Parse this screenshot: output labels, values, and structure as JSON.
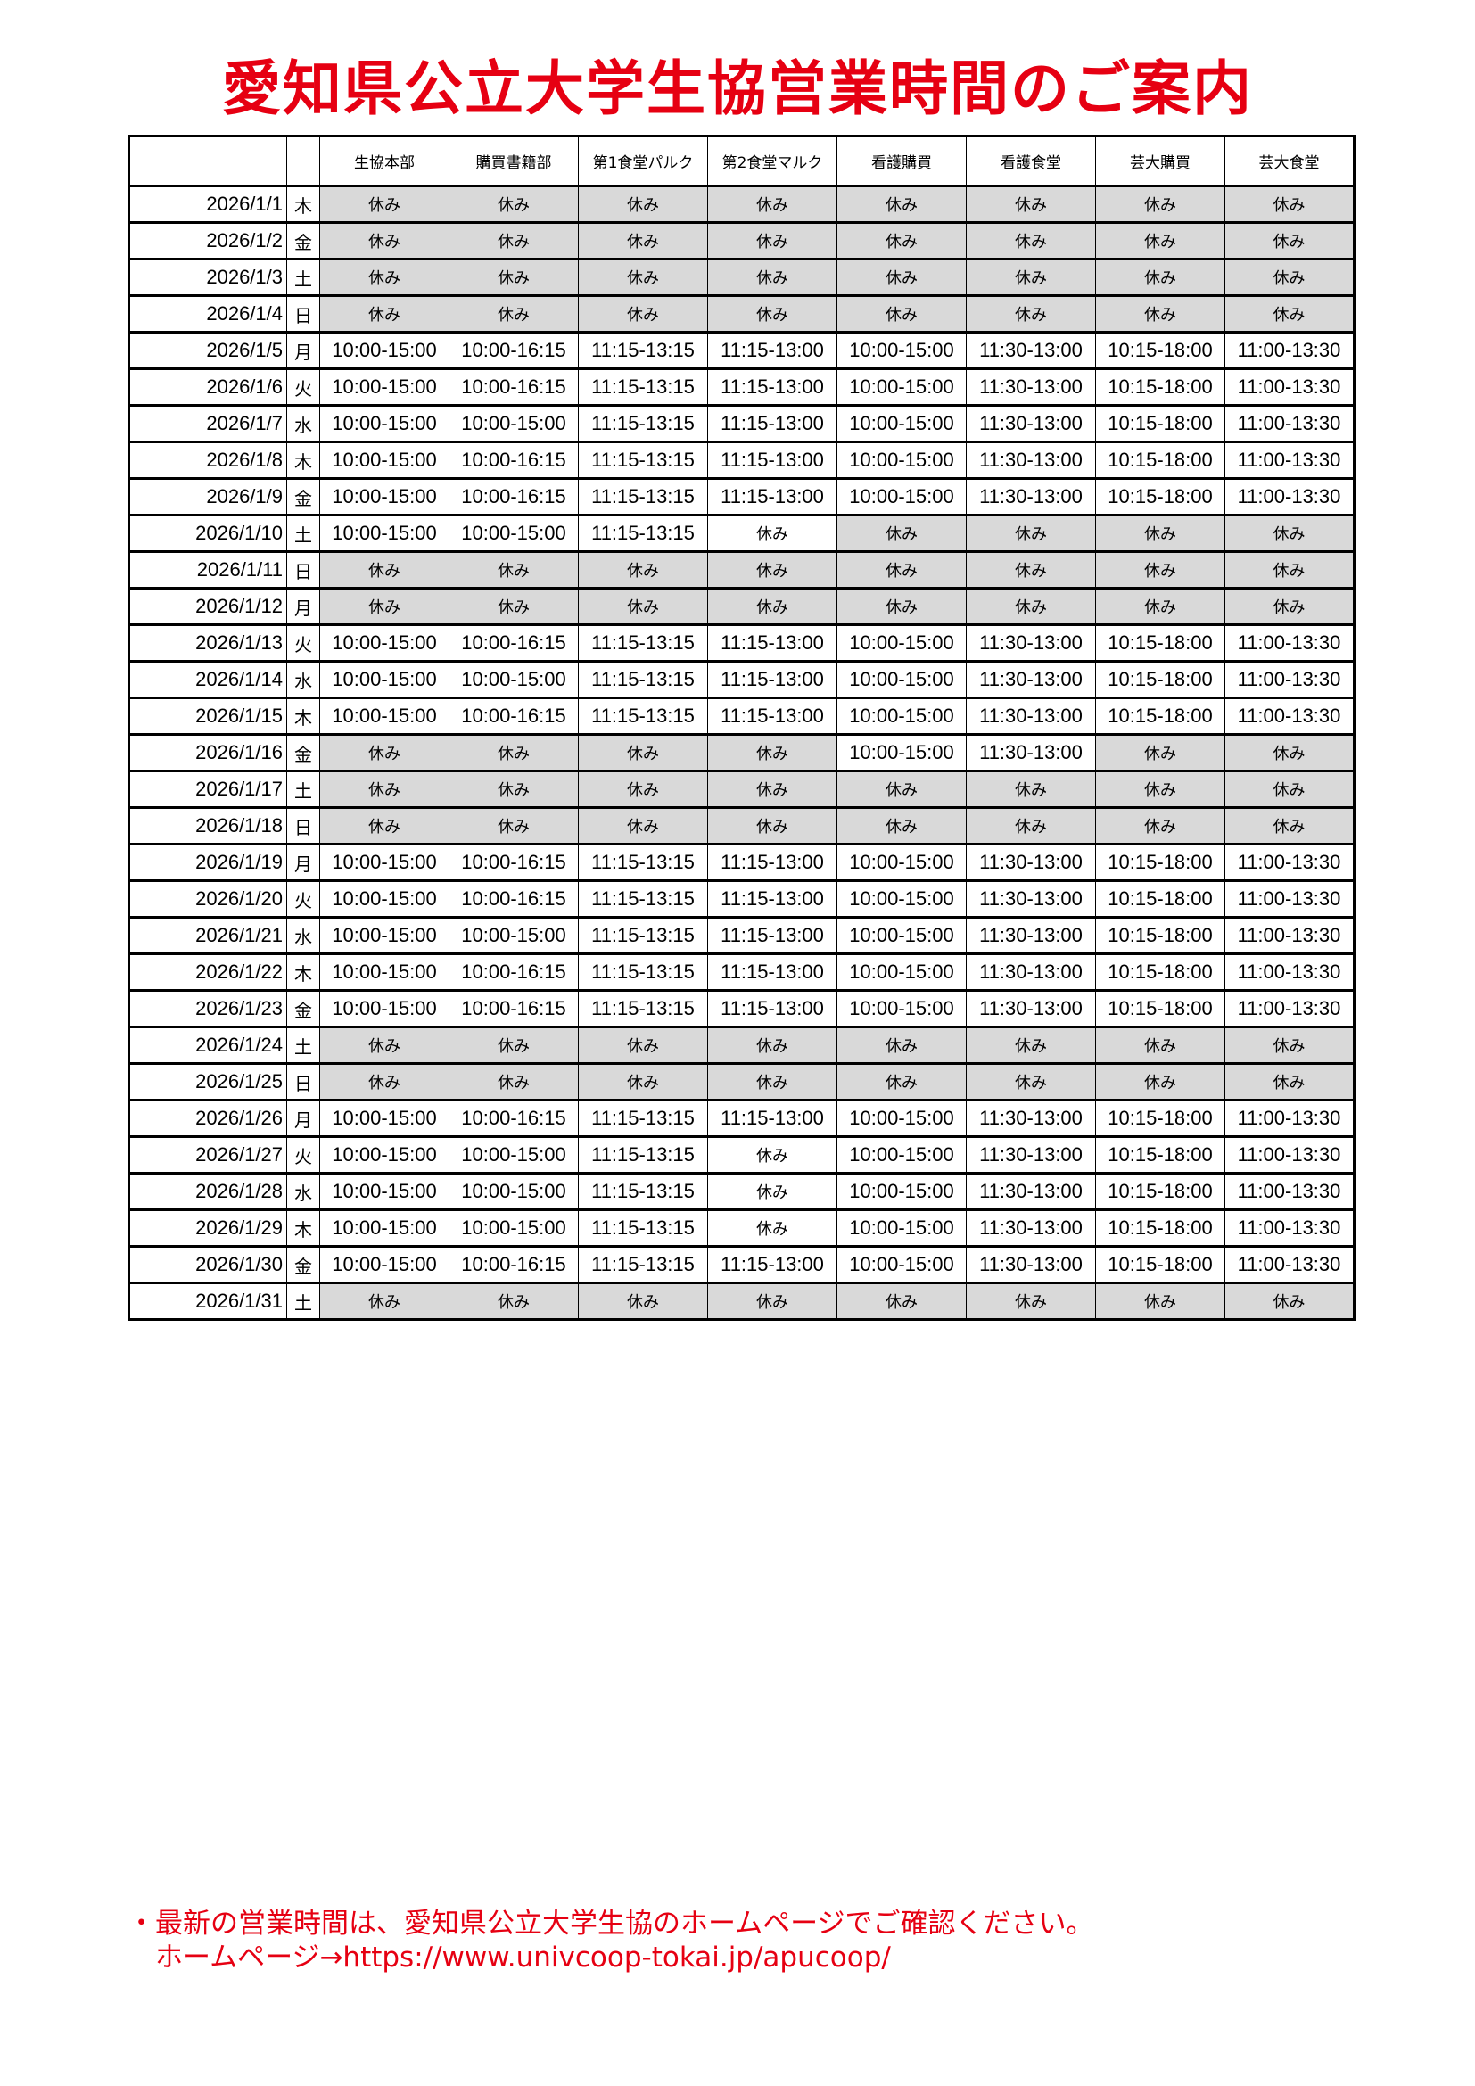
{
  "title": "愛知県公立大学生協営業時間のご案内",
  "colors": {
    "title": "#e60012",
    "closed_shade": "#d9d9d9"
  },
  "headers": [
    "生協本部",
    "購買書籍部",
    "第1食堂パルク",
    "第2食堂マルク",
    "看護購買",
    "看護食堂",
    "芸大購買",
    "芸大食堂"
  ],
  "rows": [
    {
      "date": "2026/1/1",
      "day": "木",
      "cells": [
        {
          "t": "休み",
          "s": 1
        },
        {
          "t": "休み",
          "s": 1
        },
        {
          "t": "休み",
          "s": 1
        },
        {
          "t": "休み",
          "s": 1
        },
        {
          "t": "休み",
          "s": 1
        },
        {
          "t": "休み",
          "s": 1
        },
        {
          "t": "休み",
          "s": 1
        },
        {
          "t": "休み",
          "s": 1
        }
      ]
    },
    {
      "date": "2026/1/2",
      "day": "金",
      "cells": [
        {
          "t": "休み",
          "s": 1
        },
        {
          "t": "休み",
          "s": 1
        },
        {
          "t": "休み",
          "s": 1
        },
        {
          "t": "休み",
          "s": 1
        },
        {
          "t": "休み",
          "s": 1
        },
        {
          "t": "休み",
          "s": 1
        },
        {
          "t": "休み",
          "s": 1
        },
        {
          "t": "休み",
          "s": 1
        }
      ]
    },
    {
      "date": "2026/1/3",
      "day": "土",
      "cells": [
        {
          "t": "休み",
          "s": 1
        },
        {
          "t": "休み",
          "s": 1
        },
        {
          "t": "休み",
          "s": 1
        },
        {
          "t": "休み",
          "s": 1
        },
        {
          "t": "休み",
          "s": 1
        },
        {
          "t": "休み",
          "s": 1
        },
        {
          "t": "休み",
          "s": 1
        },
        {
          "t": "休み",
          "s": 1
        }
      ]
    },
    {
      "date": "2026/1/4",
      "day": "日",
      "cells": [
        {
          "t": "休み",
          "s": 1
        },
        {
          "t": "休み",
          "s": 1
        },
        {
          "t": "休み",
          "s": 1
        },
        {
          "t": "休み",
          "s": 1
        },
        {
          "t": "休み",
          "s": 1
        },
        {
          "t": "休み",
          "s": 1
        },
        {
          "t": "休み",
          "s": 1
        },
        {
          "t": "休み",
          "s": 1
        }
      ]
    },
    {
      "date": "2026/1/5",
      "day": "月",
      "cells": [
        {
          "t": "10:00-15:00"
        },
        {
          "t": "10:00-16:15"
        },
        {
          "t": "11:15-13:15"
        },
        {
          "t": "11:15-13:00"
        },
        {
          "t": "10:00-15:00"
        },
        {
          "t": "11:30-13:00"
        },
        {
          "t": "10:15-18:00"
        },
        {
          "t": "11:00-13:30"
        }
      ]
    },
    {
      "date": "2026/1/6",
      "day": "火",
      "cells": [
        {
          "t": "10:00-15:00"
        },
        {
          "t": "10:00-16:15"
        },
        {
          "t": "11:15-13:15"
        },
        {
          "t": "11:15-13:00"
        },
        {
          "t": "10:00-15:00"
        },
        {
          "t": "11:30-13:00"
        },
        {
          "t": "10:15-18:00"
        },
        {
          "t": "11:00-13:30"
        }
      ]
    },
    {
      "date": "2026/1/7",
      "day": "水",
      "cells": [
        {
          "t": "10:00-15:00"
        },
        {
          "t": "10:00-15:00"
        },
        {
          "t": "11:15-13:15"
        },
        {
          "t": "11:15-13:00"
        },
        {
          "t": "10:00-15:00"
        },
        {
          "t": "11:30-13:00"
        },
        {
          "t": "10:15-18:00"
        },
        {
          "t": "11:00-13:30"
        }
      ]
    },
    {
      "date": "2026/1/8",
      "day": "木",
      "cells": [
        {
          "t": "10:00-15:00"
        },
        {
          "t": "10:00-16:15"
        },
        {
          "t": "11:15-13:15"
        },
        {
          "t": "11:15-13:00"
        },
        {
          "t": "10:00-15:00"
        },
        {
          "t": "11:30-13:00"
        },
        {
          "t": "10:15-18:00"
        },
        {
          "t": "11:00-13:30"
        }
      ]
    },
    {
      "date": "2026/1/9",
      "day": "金",
      "cells": [
        {
          "t": "10:00-15:00"
        },
        {
          "t": "10:00-16:15"
        },
        {
          "t": "11:15-13:15"
        },
        {
          "t": "11:15-13:00"
        },
        {
          "t": "10:00-15:00"
        },
        {
          "t": "11:30-13:00"
        },
        {
          "t": "10:15-18:00"
        },
        {
          "t": "11:00-13:30"
        }
      ]
    },
    {
      "date": "2026/1/10",
      "day": "土",
      "cells": [
        {
          "t": "10:00-15:00"
        },
        {
          "t": "10:00-15:00"
        },
        {
          "t": "11:15-13:15"
        },
        {
          "t": "休み"
        },
        {
          "t": "休み",
          "s": 1
        },
        {
          "t": "休み",
          "s": 1
        },
        {
          "t": "休み",
          "s": 1
        },
        {
          "t": "休み",
          "s": 1
        }
      ]
    },
    {
      "date": "2026/1/11",
      "day": "日",
      "cells": [
        {
          "t": "休み",
          "s": 1
        },
        {
          "t": "休み",
          "s": 1
        },
        {
          "t": "休み",
          "s": 1
        },
        {
          "t": "休み",
          "s": 1
        },
        {
          "t": "休み",
          "s": 1
        },
        {
          "t": "休み",
          "s": 1
        },
        {
          "t": "休み",
          "s": 1
        },
        {
          "t": "休み",
          "s": 1
        }
      ]
    },
    {
      "date": "2026/1/12",
      "day": "月",
      "cells": [
        {
          "t": "休み",
          "s": 1
        },
        {
          "t": "休み",
          "s": 1
        },
        {
          "t": "休み",
          "s": 1
        },
        {
          "t": "休み",
          "s": 1
        },
        {
          "t": "休み",
          "s": 1
        },
        {
          "t": "休み",
          "s": 1
        },
        {
          "t": "休み",
          "s": 1
        },
        {
          "t": "休み",
          "s": 1
        }
      ]
    },
    {
      "date": "2026/1/13",
      "day": "火",
      "cells": [
        {
          "t": "10:00-15:00"
        },
        {
          "t": "10:00-16:15"
        },
        {
          "t": "11:15-13:15"
        },
        {
          "t": "11:15-13:00"
        },
        {
          "t": "10:00-15:00"
        },
        {
          "t": "11:30-13:00"
        },
        {
          "t": "10:15-18:00"
        },
        {
          "t": "11:00-13:30"
        }
      ]
    },
    {
      "date": "2026/1/14",
      "day": "水",
      "cells": [
        {
          "t": "10:00-15:00"
        },
        {
          "t": "10:00-15:00"
        },
        {
          "t": "11:15-13:15"
        },
        {
          "t": "11:15-13:00"
        },
        {
          "t": "10:00-15:00"
        },
        {
          "t": "11:30-13:00"
        },
        {
          "t": "10:15-18:00"
        },
        {
          "t": "11:00-13:30"
        }
      ]
    },
    {
      "date": "2026/1/15",
      "day": "木",
      "cells": [
        {
          "t": "10:00-15:00"
        },
        {
          "t": "10:00-16:15"
        },
        {
          "t": "11:15-13:15"
        },
        {
          "t": "11:15-13:00"
        },
        {
          "t": "10:00-15:00"
        },
        {
          "t": "11:30-13:00"
        },
        {
          "t": "10:15-18:00"
        },
        {
          "t": "11:00-13:30"
        }
      ]
    },
    {
      "date": "2026/1/16",
      "day": "金",
      "cells": [
        {
          "t": "休み",
          "s": 1
        },
        {
          "t": "休み",
          "s": 1
        },
        {
          "t": "休み",
          "s": 1
        },
        {
          "t": "休み",
          "s": 1
        },
        {
          "t": "10:00-15:00"
        },
        {
          "t": "11:30-13:00"
        },
        {
          "t": "休み",
          "s": 1
        },
        {
          "t": "休み",
          "s": 1
        }
      ]
    },
    {
      "date": "2026/1/17",
      "day": "土",
      "cells": [
        {
          "t": "休み",
          "s": 1
        },
        {
          "t": "休み",
          "s": 1
        },
        {
          "t": "休み",
          "s": 1
        },
        {
          "t": "休み",
          "s": 1
        },
        {
          "t": "休み",
          "s": 1
        },
        {
          "t": "休み",
          "s": 1
        },
        {
          "t": "休み",
          "s": 1
        },
        {
          "t": "休み",
          "s": 1
        }
      ]
    },
    {
      "date": "2026/1/18",
      "day": "日",
      "cells": [
        {
          "t": "休み",
          "s": 1
        },
        {
          "t": "休み",
          "s": 1
        },
        {
          "t": "休み",
          "s": 1
        },
        {
          "t": "休み",
          "s": 1
        },
        {
          "t": "休み",
          "s": 1
        },
        {
          "t": "休み",
          "s": 1
        },
        {
          "t": "休み",
          "s": 1
        },
        {
          "t": "休み",
          "s": 1
        }
      ]
    },
    {
      "date": "2026/1/19",
      "day": "月",
      "cells": [
        {
          "t": "10:00-15:00"
        },
        {
          "t": "10:00-16:15"
        },
        {
          "t": "11:15-13:15"
        },
        {
          "t": "11:15-13:00"
        },
        {
          "t": "10:00-15:00"
        },
        {
          "t": "11:30-13:00"
        },
        {
          "t": "10:15-18:00"
        },
        {
          "t": "11:00-13:30"
        }
      ]
    },
    {
      "date": "2026/1/20",
      "day": "火",
      "cells": [
        {
          "t": "10:00-15:00"
        },
        {
          "t": "10:00-16:15"
        },
        {
          "t": "11:15-13:15"
        },
        {
          "t": "11:15-13:00"
        },
        {
          "t": "10:00-15:00"
        },
        {
          "t": "11:30-13:00"
        },
        {
          "t": "10:15-18:00"
        },
        {
          "t": "11:00-13:30"
        }
      ]
    },
    {
      "date": "2026/1/21",
      "day": "水",
      "cells": [
        {
          "t": "10:00-15:00"
        },
        {
          "t": "10:00-15:00"
        },
        {
          "t": "11:15-13:15"
        },
        {
          "t": "11:15-13:00"
        },
        {
          "t": "10:00-15:00"
        },
        {
          "t": "11:30-13:00"
        },
        {
          "t": "10:15-18:00"
        },
        {
          "t": "11:00-13:30"
        }
      ]
    },
    {
      "date": "2026/1/22",
      "day": "木",
      "cells": [
        {
          "t": "10:00-15:00"
        },
        {
          "t": "10:00-16:15"
        },
        {
          "t": "11:15-13:15"
        },
        {
          "t": "11:15-13:00"
        },
        {
          "t": "10:00-15:00"
        },
        {
          "t": "11:30-13:00"
        },
        {
          "t": "10:15-18:00"
        },
        {
          "t": "11:00-13:30"
        }
      ]
    },
    {
      "date": "2026/1/23",
      "day": "金",
      "cells": [
        {
          "t": "10:00-15:00"
        },
        {
          "t": "10:00-16:15"
        },
        {
          "t": "11:15-13:15"
        },
        {
          "t": "11:15-13:00"
        },
        {
          "t": "10:00-15:00"
        },
        {
          "t": "11:30-13:00"
        },
        {
          "t": "10:15-18:00"
        },
        {
          "t": "11:00-13:30"
        }
      ]
    },
    {
      "date": "2026/1/24",
      "day": "土",
      "cells": [
        {
          "t": "休み",
          "s": 1
        },
        {
          "t": "休み",
          "s": 1
        },
        {
          "t": "休み",
          "s": 1
        },
        {
          "t": "休み",
          "s": 1
        },
        {
          "t": "休み",
          "s": 1
        },
        {
          "t": "休み",
          "s": 1
        },
        {
          "t": "休み",
          "s": 1
        },
        {
          "t": "休み",
          "s": 1
        }
      ]
    },
    {
      "date": "2026/1/25",
      "day": "日",
      "cells": [
        {
          "t": "休み",
          "s": 1
        },
        {
          "t": "休み",
          "s": 1
        },
        {
          "t": "休み",
          "s": 1
        },
        {
          "t": "休み",
          "s": 1
        },
        {
          "t": "休み",
          "s": 1
        },
        {
          "t": "休み",
          "s": 1
        },
        {
          "t": "休み",
          "s": 1
        },
        {
          "t": "休み",
          "s": 1
        }
      ]
    },
    {
      "date": "2026/1/26",
      "day": "月",
      "cells": [
        {
          "t": "10:00-15:00"
        },
        {
          "t": "10:00-16:15"
        },
        {
          "t": "11:15-13:15"
        },
        {
          "t": "11:15-13:00"
        },
        {
          "t": "10:00-15:00"
        },
        {
          "t": "11:30-13:00"
        },
        {
          "t": "10:15-18:00"
        },
        {
          "t": "11:00-13:30"
        }
      ]
    },
    {
      "date": "2026/1/27",
      "day": "火",
      "cells": [
        {
          "t": "10:00-15:00"
        },
        {
          "t": "10:00-15:00"
        },
        {
          "t": "11:15-13:15"
        },
        {
          "t": "休み"
        },
        {
          "t": "10:00-15:00"
        },
        {
          "t": "11:30-13:00"
        },
        {
          "t": "10:15-18:00"
        },
        {
          "t": "11:00-13:30"
        }
      ]
    },
    {
      "date": "2026/1/28",
      "day": "水",
      "cells": [
        {
          "t": "10:00-15:00"
        },
        {
          "t": "10:00-15:00"
        },
        {
          "t": "11:15-13:15"
        },
        {
          "t": "休み"
        },
        {
          "t": "10:00-15:00"
        },
        {
          "t": "11:30-13:00"
        },
        {
          "t": "10:15-18:00"
        },
        {
          "t": "11:00-13:30"
        }
      ]
    },
    {
      "date": "2026/1/29",
      "day": "木",
      "cells": [
        {
          "t": "10:00-15:00"
        },
        {
          "t": "10:00-15:00"
        },
        {
          "t": "11:15-13:15"
        },
        {
          "t": "休み"
        },
        {
          "t": "10:00-15:00"
        },
        {
          "t": "11:30-13:00"
        },
        {
          "t": "10:15-18:00"
        },
        {
          "t": "11:00-13:30"
        }
      ]
    },
    {
      "date": "2026/1/30",
      "day": "金",
      "cells": [
        {
          "t": "10:00-15:00"
        },
        {
          "t": "10:00-16:15"
        },
        {
          "t": "11:15-13:15"
        },
        {
          "t": "11:15-13:00"
        },
        {
          "t": "10:00-15:00"
        },
        {
          "t": "11:30-13:00"
        },
        {
          "t": "10:15-18:00"
        },
        {
          "t": "11:00-13:30"
        }
      ]
    },
    {
      "date": "2026/1/31",
      "day": "土",
      "cells": [
        {
          "t": "休み",
          "s": 1
        },
        {
          "t": "休み",
          "s": 1
        },
        {
          "t": "休み",
          "s": 1
        },
        {
          "t": "休み",
          "s": 1
        },
        {
          "t": "休み",
          "s": 1
        },
        {
          "t": "休み",
          "s": 1
        },
        {
          "t": "休み",
          "s": 1
        },
        {
          "t": "休み",
          "s": 1
        }
      ]
    }
  ],
  "footer": {
    "note": "・最新の営業時間は、愛知県公立大学生協のホームページでご確認ください。",
    "link_line": "　ホームページ→https://www.univcoop-tokai.jp/apucoop/"
  }
}
